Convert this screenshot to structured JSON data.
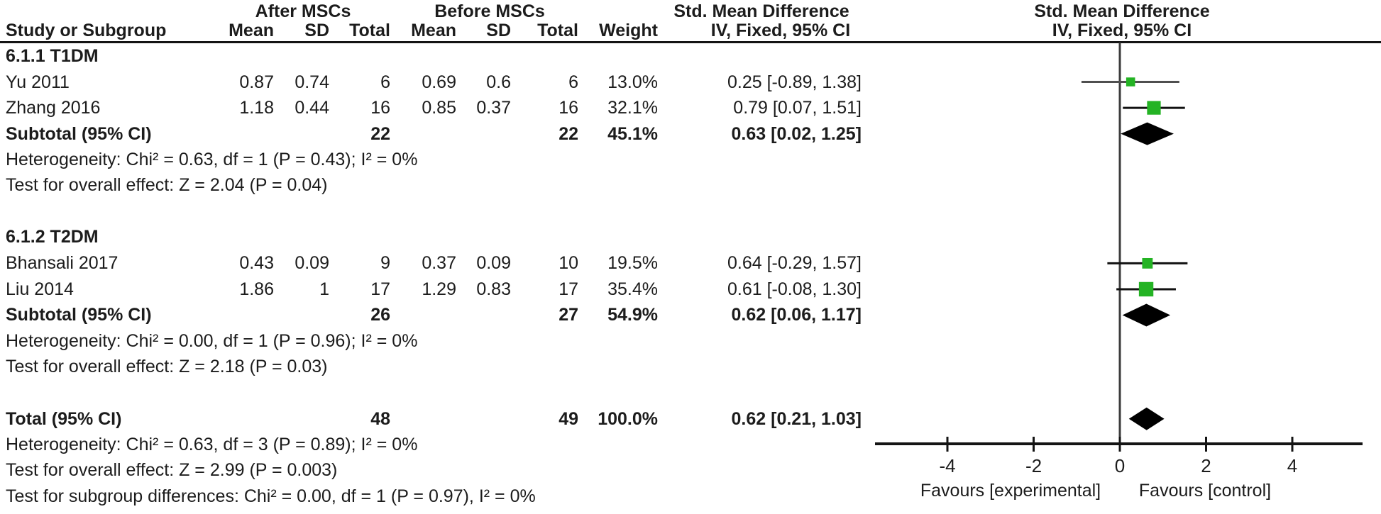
{
  "header": {
    "group1_label": "After MSCs",
    "group2_label": "Before MSCs",
    "smd_label_left": "Std. Mean Difference",
    "smd_label_right": "Std. Mean Difference",
    "method_label_left": "IV, Fixed, 95% CI",
    "method_label_right": "IV, Fixed, 95% CI",
    "study_col": "Study or Subgroup",
    "mean_col1": "Mean",
    "sd_col1": "SD",
    "total_col1": "Total",
    "mean_col2": "Mean",
    "sd_col2": "SD",
    "total_col2": "Total",
    "weight_col": "Weight"
  },
  "studies": {
    "yu": {
      "study": "Yu  2011",
      "mean1": "0.87",
      "sd1": "0.74",
      "total1": "6",
      "mean2": "0.69",
      "sd2": "0.6",
      "total2": "6",
      "weight": "13.0%",
      "ci": "0.25 [-0.89, 1.38]"
    },
    "zhang": {
      "study": "Zhang 2016",
      "mean1": "1.18",
      "sd1": "0.44",
      "total1": "16",
      "mean2": "0.85",
      "sd2": "0.37",
      "total2": "16",
      "weight": "32.1%",
      "ci": "0.79 [0.07, 1.51]"
    },
    "bhansali": {
      "study": "Bhansali 2017",
      "mean1": "0.43",
      "sd1": "0.09",
      "total1": "9",
      "mean2": "0.37",
      "sd2": "0.09",
      "total2": "10",
      "weight": "19.5%",
      "ci": "0.64 [-0.29, 1.57]"
    },
    "liu": {
      "study": "Liu 2014",
      "mean1": "1.86",
      "sd1": "1",
      "total1": "17",
      "mean2": "1.29",
      "sd2": "0.83",
      "total2": "17",
      "weight": "35.4%",
      "ci": "0.61 [-0.08, 1.30]"
    }
  },
  "t1dm": {
    "title": "6.1.1 T1DM",
    "subtotal": {
      "label": "Subtotal (95% CI)",
      "total1": "22",
      "total2": "22",
      "weight": "45.1%",
      "ci": "0.63 [0.02, 1.25]"
    },
    "heterogeneity": "Heterogeneity: Chi² = 0.63, df = 1 (P = 0.43); I² = 0%",
    "overall": "Test for overall effect: Z = 2.04 (P = 0.04)"
  },
  "t2dm": {
    "title": "6.1.2 T2DM",
    "subtotal": {
      "label": "Subtotal (95% CI)",
      "total1": "26",
      "total2": "27",
      "weight": "54.9%",
      "ci": "0.62 [0.06, 1.17]"
    },
    "heterogeneity": "Heterogeneity: Chi² = 0.00, df = 1 (P = 0.96); I² = 0%",
    "overall": "Test for overall effect: Z = 2.18 (P = 0.03)"
  },
  "total": {
    "label": "Total (95% CI)",
    "total1": "48",
    "total2": "49",
    "weight": "100.0%",
    "ci": "0.62 [0.21, 1.03]",
    "heterogeneity": "Heterogeneity: Chi² = 0.63, df = 3 (P = 0.89); I² = 0%",
    "overall": "Test for overall effect: Z = 2.99 (P = 0.003)",
    "subgroup": "Test for subgroup differences: Chi² = 0.00, df = 1 (P = 0.97), I² = 0%"
  },
  "axis": {
    "ticks": [
      "-4",
      "-2",
      "0",
      "2",
      "4"
    ],
    "favours_left": "Favours [experimental]",
    "favours_right": "Favours [control]"
  },
  "chart_data": {
    "type": "forest",
    "title": "Std. Mean Difference, IV, Fixed, 95% CI",
    "x_axis": {
      "ticks": [
        -4,
        -2,
        0,
        2,
        4
      ],
      "zero_line": 0,
      "drawn_range": [
        -5.7,
        5.6
      ]
    },
    "studies": [
      {
        "name": "Yu 2011",
        "group": "T1DM",
        "est": 0.25,
        "lo": -0.89,
        "hi": 1.38,
        "weight_pct": 13.0,
        "row": 1,
        "ci_color": "#4f4f4f"
      },
      {
        "name": "Zhang 2016",
        "group": "T1DM",
        "est": 0.79,
        "lo": 0.07,
        "hi": 1.51,
        "weight_pct": 32.1,
        "row": 2,
        "ci_color": "#111111"
      },
      {
        "name": "Bhansali 2017",
        "group": "T2DM",
        "est": 0.64,
        "lo": -0.29,
        "hi": 1.57,
        "weight_pct": 19.5,
        "row": 8,
        "ci_color": "#111111"
      },
      {
        "name": "Liu 2014",
        "group": "T2DM",
        "est": 0.61,
        "lo": -0.08,
        "hi": 1.3,
        "weight_pct": 35.4,
        "row": 9,
        "ci_color": "#111111"
      }
    ],
    "summaries": [
      {
        "name": "Subtotal T1DM",
        "est": 0.63,
        "lo": 0.02,
        "hi": 1.25,
        "row": 3
      },
      {
        "name": "Subtotal T2DM",
        "est": 0.62,
        "lo": 0.06,
        "hi": 1.17,
        "row": 10
      },
      {
        "name": "Total",
        "est": 0.62,
        "lo": 0.21,
        "hi": 1.03,
        "row": 14
      }
    ],
    "favours": [
      "Favours [experimental]",
      "Favours [control]"
    ],
    "legend_position": "none",
    "grid": false,
    "colors": {
      "marker_green": "#24b324",
      "summary_black": "#000000",
      "axis": "#141414",
      "zero_line": "#3c3c3c"
    }
  }
}
